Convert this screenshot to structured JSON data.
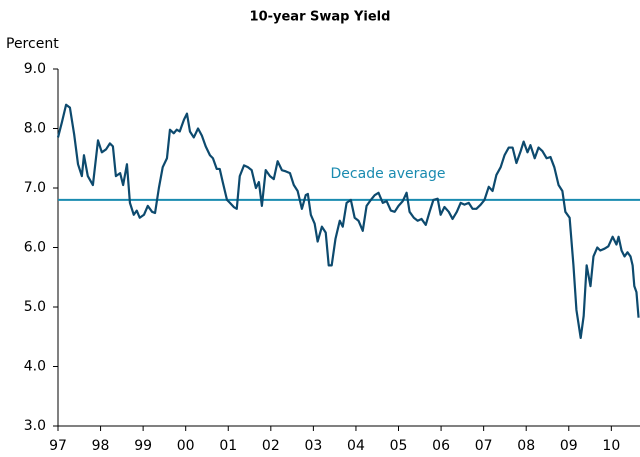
{
  "chart_data": {
    "type": "line",
    "title": "10-year Swap Yield",
    "y_label": "Percent",
    "x": [
      1997.0,
      1997.09,
      1997.19,
      1997.28,
      1997.38,
      1997.47,
      1997.56,
      1997.61,
      1997.7,
      1997.82,
      1997.94,
      1998.03,
      1998.13,
      1998.22,
      1998.29,
      1998.36,
      1998.46,
      1998.53,
      1998.62,
      1998.69,
      1998.78,
      1998.85,
      1998.92,
      1999.02,
      1999.11,
      1999.21,
      1999.28,
      1999.37,
      1999.46,
      1999.56,
      1999.63,
      1999.72,
      1999.79,
      1999.86,
      1999.96,
      2000.03,
      2000.1,
      2000.19,
      2000.29,
      2000.38,
      2000.47,
      2000.57,
      2000.64,
      2000.73,
      2000.8,
      2000.87,
      2000.97,
      2001.04,
      2001.13,
      2001.2,
      2001.27,
      2001.37,
      2001.46,
      2001.55,
      2001.65,
      2001.72,
      2001.79,
      2001.88,
      2001.98,
      2002.07,
      2002.16,
      2002.26,
      2002.35,
      2002.45,
      2002.54,
      2002.63,
      2002.73,
      2002.82,
      2002.87,
      2002.94,
      2003.03,
      2003.1,
      2003.2,
      2003.29,
      2003.36,
      2003.43,
      2003.52,
      2003.62,
      2003.69,
      2003.78,
      2003.88,
      2003.97,
      2004.06,
      2004.16,
      2004.25,
      2004.35,
      2004.44,
      2004.53,
      2004.63,
      2004.72,
      2004.82,
      2004.91,
      2005.0,
      2005.1,
      2005.19,
      2005.26,
      2005.36,
      2005.45,
      2005.54,
      2005.64,
      2005.73,
      2005.82,
      2005.92,
      2005.99,
      2006.08,
      2006.18,
      2006.27,
      2006.37,
      2006.46,
      2006.55,
      2006.65,
      2006.74,
      2006.83,
      2006.93,
      2007.02,
      2007.12,
      2007.21,
      2007.3,
      2007.4,
      2007.49,
      2007.59,
      2007.68,
      2007.77,
      2007.87,
      2007.94,
      2008.03,
      2008.1,
      2008.2,
      2008.29,
      2008.38,
      2008.48,
      2008.57,
      2008.66,
      2008.76,
      2008.85,
      2008.92,
      2009.02,
      2009.11,
      2009.18,
      2009.28,
      2009.35,
      2009.42,
      2009.51,
      2009.58,
      2009.67,
      2009.74,
      2009.84,
      2009.93,
      2010.03,
      2010.12,
      2010.17,
      2010.24,
      2010.31,
      2010.38,
      2010.45,
      2010.5,
      2010.54,
      2010.59,
      2010.64
    ],
    "series": [
      {
        "color": "#0d4a6e",
        "values": [
          7.85,
          8.1,
          8.4,
          8.35,
          7.9,
          7.4,
          7.2,
          7.55,
          7.2,
          7.05,
          7.8,
          7.6,
          7.65,
          7.75,
          7.7,
          7.2,
          7.25,
          7.05,
          7.4,
          6.75,
          6.55,
          6.62,
          6.5,
          6.55,
          6.7,
          6.6,
          6.58,
          7.0,
          7.35,
          7.5,
          7.98,
          7.92,
          7.98,
          7.95,
          8.15,
          8.25,
          7.95,
          7.85,
          8.0,
          7.88,
          7.7,
          7.55,
          7.5,
          7.32,
          7.32,
          7.1,
          6.8,
          6.75,
          6.68,
          6.65,
          7.2,
          7.38,
          7.35,
          7.3,
          7.0,
          7.1,
          6.7,
          7.3,
          7.2,
          7.15,
          7.45,
          7.3,
          7.28,
          7.25,
          7.05,
          6.95,
          6.65,
          6.88,
          6.9,
          6.55,
          6.4,
          6.1,
          6.35,
          6.25,
          5.7,
          5.7,
          6.15,
          6.45,
          6.35,
          6.75,
          6.8,
          6.5,
          6.45,
          6.28,
          6.7,
          6.8,
          6.88,
          6.92,
          6.75,
          6.78,
          6.62,
          6.6,
          6.7,
          6.78,
          6.92,
          6.6,
          6.5,
          6.45,
          6.48,
          6.38,
          6.6,
          6.8,
          6.82,
          6.55,
          6.68,
          6.6,
          6.48,
          6.6,
          6.75,
          6.72,
          6.75,
          6.65,
          6.65,
          6.72,
          6.8,
          7.02,
          6.95,
          7.22,
          7.35,
          7.55,
          7.68,
          7.68,
          7.42,
          7.62,
          7.78,
          7.6,
          7.72,
          7.5,
          7.68,
          7.62,
          7.5,
          7.52,
          7.35,
          7.05,
          6.95,
          6.6,
          6.5,
          5.7,
          4.95,
          4.48,
          4.85,
          5.7,
          5.35,
          5.85,
          6.0,
          5.95,
          5.98,
          6.02,
          6.18,
          6.05,
          6.18,
          5.95,
          5.85,
          5.92,
          5.85,
          5.7,
          5.35,
          5.25,
          4.82
        ]
      }
    ],
    "reference_line": {
      "value": 6.8,
      "label": "Decade average",
      "color": "#1a8bb0"
    },
    "xlim": [
      1997,
      2010.65
    ],
    "xticks": [
      {
        "value": 1997,
        "label": "97"
      },
      {
        "value": 1998,
        "label": "98"
      },
      {
        "value": 1999,
        "label": "99"
      },
      {
        "value": 2000,
        "label": "00"
      },
      {
        "value": 2001,
        "label": "01"
      },
      {
        "value": 2002,
        "label": "02"
      },
      {
        "value": 2003,
        "label": "03"
      },
      {
        "value": 2004,
        "label": "04"
      },
      {
        "value": 2005,
        "label": "05"
      },
      {
        "value": 2006,
        "label": "06"
      },
      {
        "value": 2007,
        "label": "07"
      },
      {
        "value": 2008,
        "label": "08"
      },
      {
        "value": 2009,
        "label": "09"
      },
      {
        "value": 2010,
        "label": "10"
      }
    ],
    "ylim": [
      3,
      9
    ],
    "yticks": [
      {
        "value": 3,
        "label": "3.0"
      },
      {
        "value": 4,
        "label": "4.0"
      },
      {
        "value": 5,
        "label": "5.0"
      },
      {
        "value": 6,
        "label": "6.0"
      },
      {
        "value": 7,
        "label": "7.0"
      },
      {
        "value": 8,
        "label": "8.0"
      },
      {
        "value": 9,
        "label": "9.0"
      }
    ]
  }
}
